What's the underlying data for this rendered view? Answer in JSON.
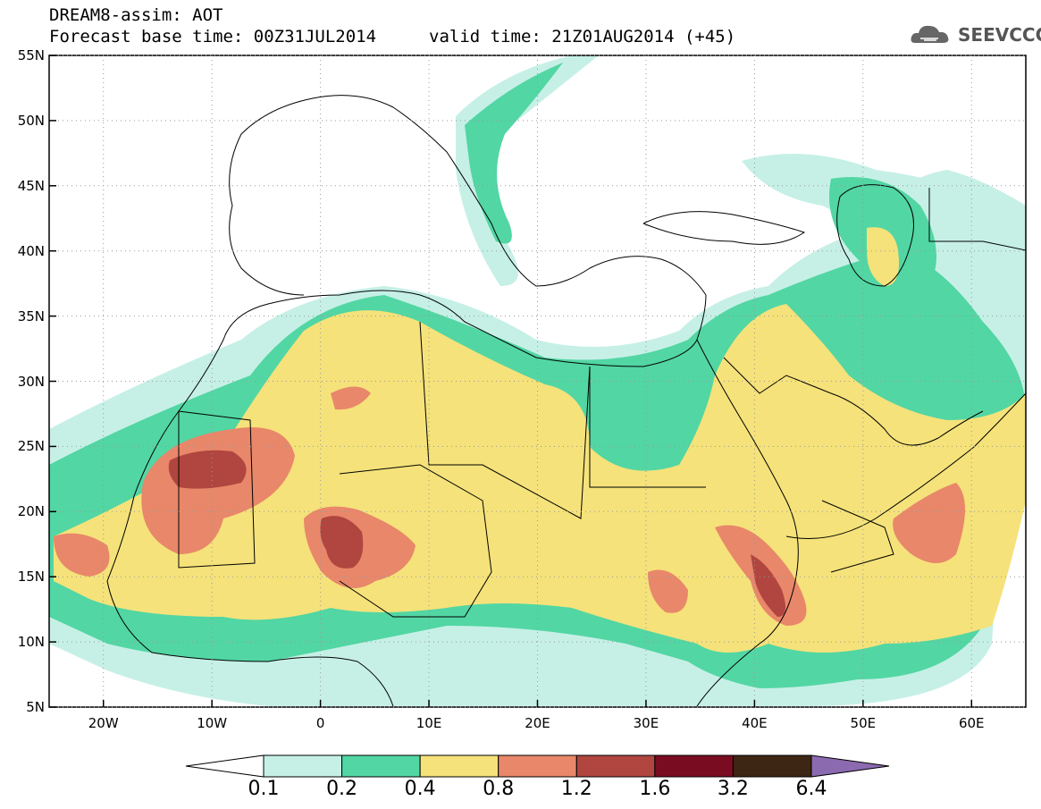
{
  "header": {
    "line1": "DREAM8-assim: AOT",
    "line2": "Forecast base time: 00Z31JUL2014",
    "valid": "valid time: 21Z01AUG2014 (+45)"
  },
  "logo": {
    "text": "SEEVCCC",
    "icon": "cloud-icon"
  },
  "map": {
    "lat_labels": [
      "55N",
      "50N",
      "45N",
      "40N",
      "35N",
      "30N",
      "25N",
      "20N",
      "15N",
      "10N",
      "5N"
    ],
    "lon_labels": [
      "20W",
      "10W",
      "0",
      "10E",
      "20E",
      "30E",
      "40E",
      "50E",
      "60E"
    ],
    "lon_range": [
      -25,
      65
    ],
    "lat_range": [
      5,
      55
    ]
  },
  "colorbar": {
    "labels": [
      "0.1",
      "0.2",
      "0.4",
      "0.8",
      "1.2",
      "1.6",
      "3.2",
      "6.4"
    ],
    "colors": [
      "#ffffff",
      "#c6f0e6",
      "#52d6a4",
      "#f5e27a",
      "#e8876a",
      "#b0463f",
      "#7a0c22",
      "#3d2614",
      "#8b6ab0"
    ]
  }
}
